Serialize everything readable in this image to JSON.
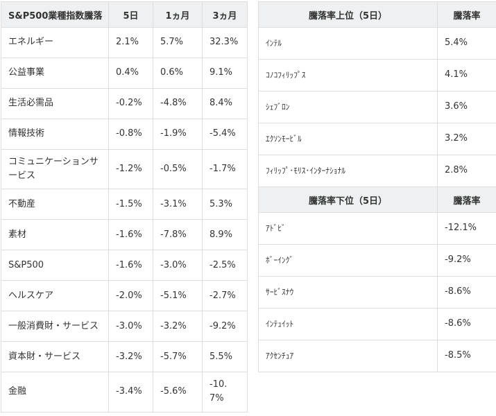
{
  "theme": {
    "header_bg": "#eef0f1",
    "border_color": "#dddddd",
    "text_color": "#333333",
    "page_bg": "#ffffff"
  },
  "chart_data": [
    {
      "type": "table",
      "title": "S&P500業種指数騰落",
      "columns": [
        "S&P500業種指数騰落",
        "5日",
        "1ヵ月",
        "3ヵ月"
      ],
      "rows": [
        [
          "エネルギー",
          "2.1%",
          "5.7%",
          "32.3%"
        ],
        [
          "公益事業",
          "0.4%",
          "0.6%",
          "9.1%"
        ],
        [
          "生活必需品",
          "-0.2%",
          "-4.8%",
          "8.4%"
        ],
        [
          "情報技術",
          "-0.8%",
          "-1.9%",
          "-5.4%"
        ],
        [
          "コミュニケーションサービス",
          "-1.2%",
          "-0.5%",
          "-1.7%"
        ],
        [
          "不動産",
          "-1.5%",
          "-3.1%",
          "5.3%"
        ],
        [
          "素材",
          "-1.6%",
          "-7.8%",
          "8.9%"
        ],
        [
          "S&P500",
          "-1.6%",
          "-3.0%",
          "-2.5%"
        ],
        [
          "ヘルスケア",
          "-2.0%",
          "-5.1%",
          "-2.7%"
        ],
        [
          "一般消費財・サービス",
          "-3.0%",
          "-3.2%",
          "-9.2%"
        ],
        [
          "資本財・サービス",
          "-3.2%",
          "-5.7%",
          "5.5%"
        ],
        [
          "金融",
          "-3.4%",
          "-5.6%",
          "-10.7%"
        ]
      ]
    },
    {
      "type": "table",
      "title": "騰落率上位（5日）",
      "columns": [
        "騰落率上位（5日）",
        "騰落率"
      ],
      "rows": [
        [
          "ｲﾝﾃﾙ",
          "5.4%"
        ],
        [
          "ｺﾉｺﾌｨﾘｯﾌﾟｽ",
          "4.1%"
        ],
        [
          "ｼｪﾌﾞﾛﾝ",
          "3.6%"
        ],
        [
          "ｴｸｿﾝﾓｰﾋﾞﾙ",
          "3.2%"
        ],
        [
          "ﾌｨﾘｯﾌﾟ･ﾓﾘｽ･ｲﾝﾀｰﾅｼｮﾅﾙ",
          "2.8%"
        ]
      ]
    },
    {
      "type": "table",
      "title": "騰落率下位（5日）",
      "columns": [
        "騰落率下位（5日）",
        "騰落率"
      ],
      "rows": [
        [
          "ｱﾄﾞﾋﾞ",
          "-12.1%"
        ],
        [
          "ﾎﾞｰｲﾝｸﾞ",
          "-9.2%"
        ],
        [
          "ｻｰﾋﾞｽﾅｳ",
          "-8.6%"
        ],
        [
          "ｲﾝﾃｭｲｯﾄ",
          "-8.6%"
        ],
        [
          "ｱｸｾﾝﾁｭｱ",
          "-8.5%"
        ]
      ]
    }
  ]
}
